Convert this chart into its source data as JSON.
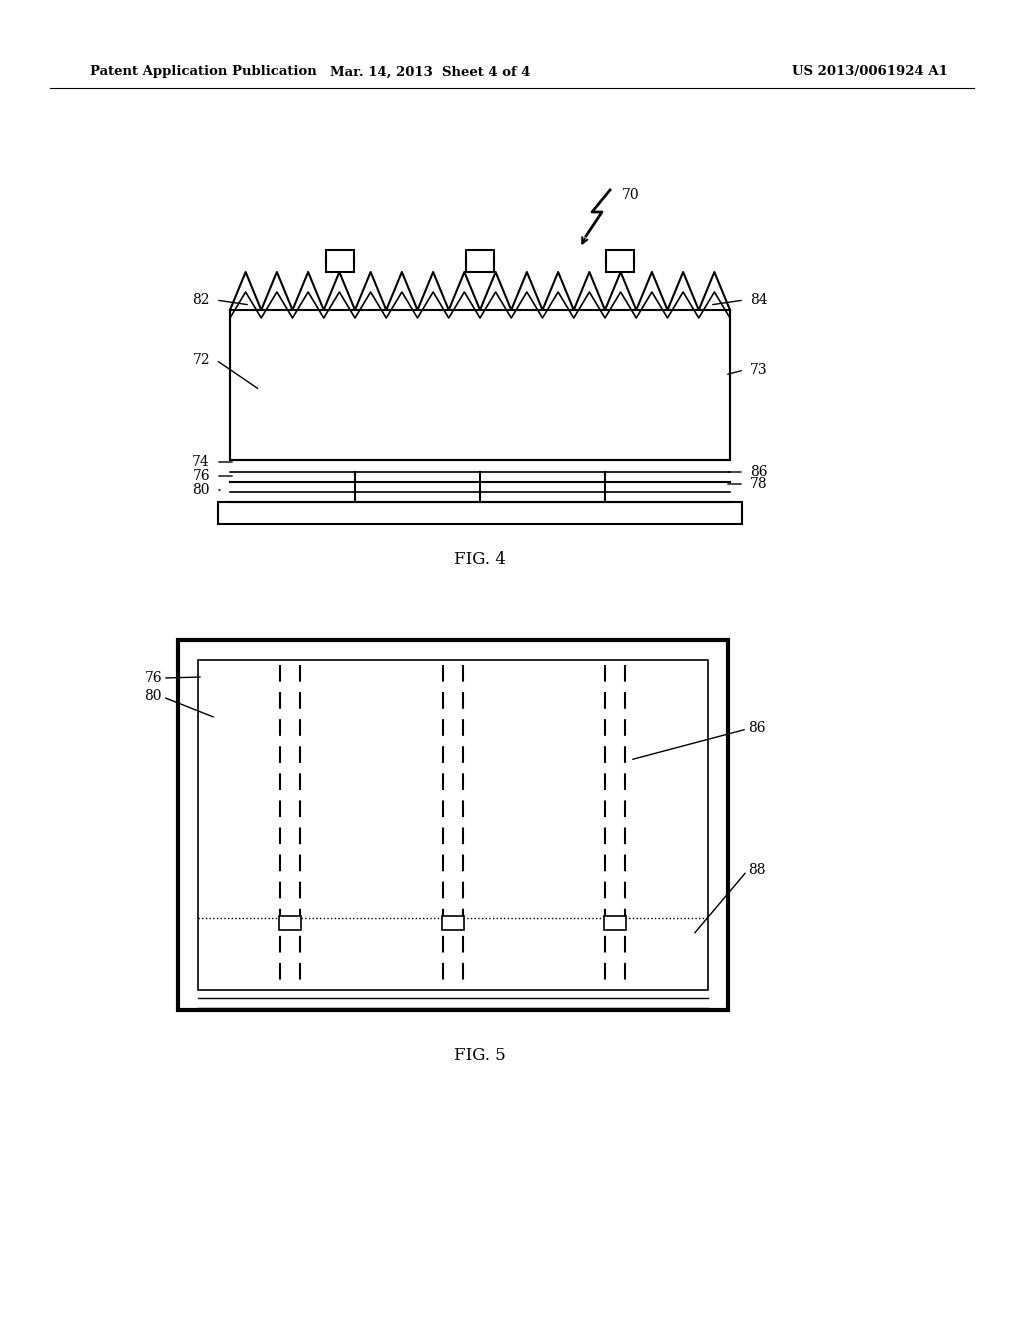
{
  "header_left": "Patent Application Publication",
  "header_mid": "Mar. 14, 2013  Sheet 4 of 4",
  "header_right": "US 2013/0061924 A1",
  "fig4_label": "FIG. 4",
  "fig5_label": "FIG. 5",
  "bg_color": "#ffffff",
  "line_color": "#000000"
}
